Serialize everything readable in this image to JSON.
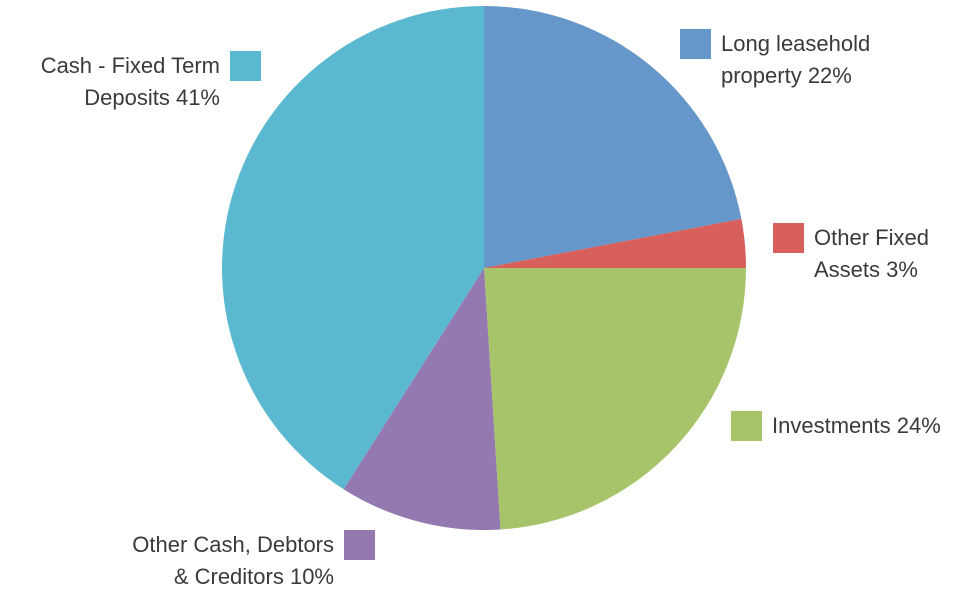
{
  "chart_data": {
    "type": "pie",
    "title": "",
    "slices": [
      {
        "label": "Long leasehold property 22%",
        "label_lines": [
          "Long leasehold",
          "property 22%"
        ],
        "value": 22,
        "color": "#6597CA"
      },
      {
        "label": "Other Fixed Assets 3%",
        "label_lines": [
          "Other Fixed",
          "Assets 3%"
        ],
        "value": 3,
        "color": "#D75F5C"
      },
      {
        "label": "Investments 24%",
        "label_lines": [
          "Investments 24%"
        ],
        "value": 24,
        "color": "#A8C46B"
      },
      {
        "label": "Other Cash, Debtors & Creditors 10%",
        "label_lines": [
          "Other Cash, Debtors",
          "& Creditors 10%"
        ],
        "value": 10,
        "color": "#9479B1"
      },
      {
        "label": "Cash - Fixed Term Deposits 41%",
        "label_lines": [
          "Cash - Fixed Term",
          "Deposits 41%"
        ],
        "value": 41,
        "color": "#5AB8D0"
      }
    ]
  }
}
